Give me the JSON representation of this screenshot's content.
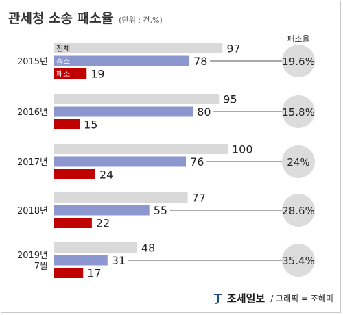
{
  "title": "관세청 소송 패소율",
  "unit": "(단위 : 건,%)",
  "rate_header": "패소율",
  "colors": {
    "total": "#d9d9d9",
    "lawsuit": "#8c97cf",
    "loss": "#c00000",
    "circle": "#dcdcdc"
  },
  "chart_data": {
    "type": "bar",
    "title": "관세청 소송 패소율",
    "unit": "(단위 : 건,%)",
    "categories": [
      [
        "2015년"
      ],
      [
        "2016년"
      ],
      [
        "2017년"
      ],
      [
        "2018년"
      ],
      [
        "2019년",
        "7월"
      ]
    ],
    "series": [
      {
        "name": "전체",
        "values": [
          97,
          95,
          100,
          77,
          48
        ]
      },
      {
        "name": "승소",
        "values": [
          78,
          80,
          76,
          55,
          31
        ]
      },
      {
        "name": "패소",
        "values": [
          19,
          15,
          24,
          22,
          17
        ]
      }
    ],
    "loss_rate": [
      "19.6%",
      "15.8%",
      "24%",
      "28.6%",
      "35.4%"
    ],
    "xlim": [
      0,
      100
    ]
  },
  "footer": {
    "logo": "조세일보",
    "credit": "/ 그래픽 = 조혜미"
  }
}
